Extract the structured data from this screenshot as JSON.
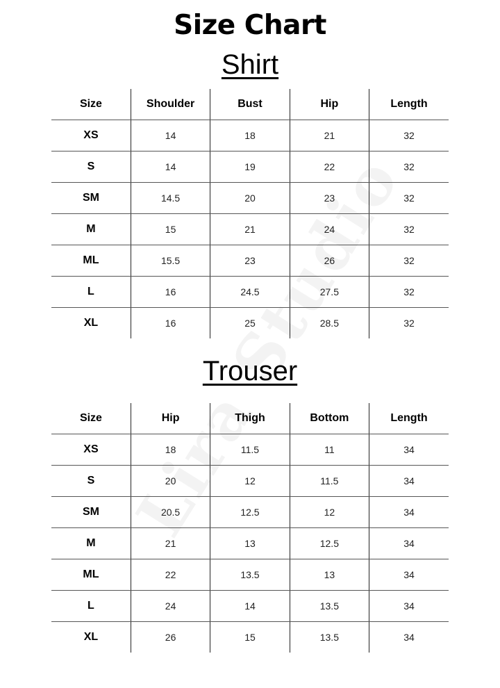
{
  "title": "Size Chart",
  "watermark": "Lira Studio",
  "shirt": {
    "title": "Shirt",
    "headers": [
      "Size",
      "Shoulder",
      "Bust",
      "Hip",
      "Length"
    ],
    "rows": [
      [
        "XS",
        "14",
        "18",
        "21",
        "32"
      ],
      [
        "S",
        "14",
        "19",
        "22",
        "32"
      ],
      [
        "SM",
        "14.5",
        "20",
        "23",
        "32"
      ],
      [
        "M",
        "15",
        "21",
        "24",
        "32"
      ],
      [
        "ML",
        "15.5",
        "23",
        "26",
        "32"
      ],
      [
        "L",
        "16",
        "24.5",
        "27.5",
        "32"
      ],
      [
        "XL",
        "16",
        "25",
        "28.5",
        "32"
      ]
    ]
  },
  "trouser": {
    "title": "Trouser",
    "headers": [
      "Size",
      "Hip",
      "Thigh",
      "Bottom",
      "Length"
    ],
    "rows": [
      [
        "XS",
        "18",
        "11.5",
        "11",
        "34"
      ],
      [
        "S",
        "20",
        "12",
        "11.5",
        "34"
      ],
      [
        "SM",
        "20.5",
        "12.5",
        "12",
        "34"
      ],
      [
        "M",
        "21",
        "13",
        "12.5",
        "34"
      ],
      [
        "ML",
        "22",
        "13.5",
        "13",
        "34"
      ],
      [
        "L",
        "24",
        "14",
        "13.5",
        "34"
      ],
      [
        "XL",
        "26",
        "15",
        "13.5",
        "34"
      ]
    ]
  }
}
